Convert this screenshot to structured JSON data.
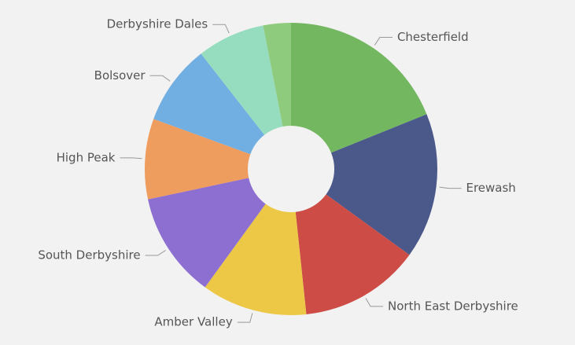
{
  "chart_data": {
    "type": "donut",
    "categories": [
      "Chesterfield",
      "Erewash",
      "North East Derbyshire",
      "Amber Valley",
      "South Derbyshire",
      "High Peak",
      "Bolsover",
      "Derbyshire Dales",
      null
    ],
    "values": [
      68,
      58,
      48,
      42,
      42,
      32,
      32,
      27,
      11
    ],
    "colors": [
      "#73b761",
      "#4a588a",
      "#cd4c46",
      "#ecc846",
      "#8d6fd1",
      "#ef9c5f",
      "#71afe2",
      "#96dcbf",
      "#8fcb7d"
    ]
  }
}
